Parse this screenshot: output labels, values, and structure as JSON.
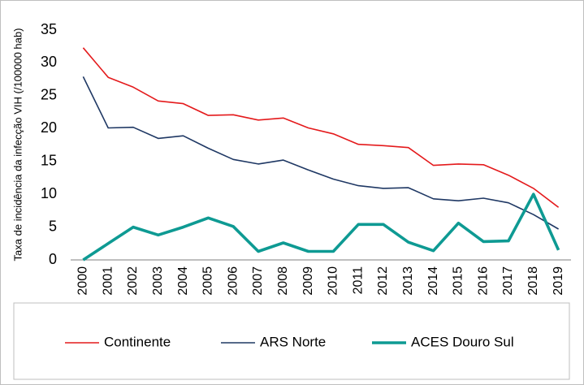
{
  "chart_data": {
    "type": "line",
    "title": "",
    "xlabel": "",
    "ylabel": "Taxa de incidência da infecção VIH  (/100000 hab)",
    "ylim": [
      0,
      35
    ],
    "yticks": [
      "0",
      "5",
      "10",
      "15",
      "20",
      "25",
      "30",
      "35"
    ],
    "categories": [
      "2000",
      "2001",
      "2002",
      "2003",
      "2004",
      "2005",
      "2006",
      "2007",
      "2008",
      "2009",
      "2010",
      "2011",
      "2012",
      "2013",
      "2014",
      "2015",
      "2016",
      "2017",
      "2018",
      "2019"
    ],
    "series": [
      {
        "name": "Continente",
        "color": "#e41a1c",
        "values": [
          32.3,
          27.8,
          26.3,
          24.2,
          23.8,
          22.0,
          22.1,
          21.3,
          21.6,
          20.1,
          19.2,
          17.6,
          17.4,
          17.1,
          14.4,
          14.6,
          14.5,
          12.9,
          10.9,
          8.0
        ]
      },
      {
        "name": "ARS Norte",
        "color": "#1f3864",
        "values": [
          27.9,
          20.1,
          20.2,
          18.5,
          18.9,
          17.0,
          15.3,
          14.6,
          15.2,
          13.7,
          12.3,
          11.3,
          10.9,
          11.0,
          9.3,
          9.0,
          9.4,
          8.7,
          6.9,
          4.7
        ]
      },
      {
        "name": "ACES Douro Sul",
        "color": "#0e9a93",
        "values": [
          0.0,
          2.5,
          5.0,
          3.8,
          5.0,
          6.4,
          5.1,
          1.3,
          2.6,
          1.3,
          1.3,
          5.4,
          5.4,
          2.7,
          1.4,
          5.6,
          2.8,
          2.9,
          10.0,
          1.5
        ]
      }
    ],
    "legend_position": "bottom",
    "grid": false
  }
}
